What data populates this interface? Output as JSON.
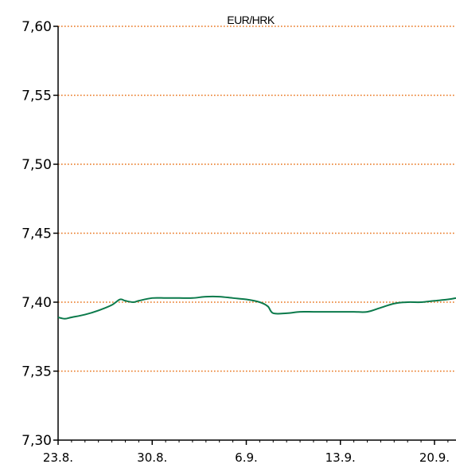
{
  "chart_data": {
    "type": "line",
    "title": "EUR/HRK",
    "xlabel": "",
    "ylabel": "",
    "ylim": [
      7.3,
      7.6
    ],
    "y_ticks": [
      "7,30",
      "7,35",
      "7,40",
      "7,45",
      "7,50",
      "7,55",
      "7,60"
    ],
    "x_tick_labels": [
      "23.8.",
      "30.8.",
      "6.9.",
      "13.9.",
      "20.9."
    ],
    "grid": "horizontal dotted",
    "grid_color": "#E8731A",
    "line_color": "#0B7A4B",
    "series": [
      {
        "x": [
          0,
          0.5,
          1,
          2,
          3,
          4,
          4.6,
          5,
          5.6,
          6,
          7,
          8,
          9,
          10,
          11,
          12,
          13,
          14,
          15,
          15.6,
          16,
          17,
          18,
          19,
          20,
          21,
          22,
          23,
          24,
          25,
          26,
          27,
          28,
          29,
          29.6
        ],
        "values": [
          7.389,
          7.388,
          7.389,
          7.391,
          7.394,
          7.398,
          7.402,
          7.401,
          7.4,
          7.401,
          7.403,
          7.403,
          7.403,
          7.403,
          7.404,
          7.404,
          7.403,
          7.402,
          7.4,
          7.397,
          7.392,
          7.392,
          7.393,
          7.393,
          7.393,
          7.393,
          7.393,
          7.393,
          7.396,
          7.399,
          7.4,
          7.4,
          7.401,
          7.402,
          7.403
        ]
      }
    ]
  }
}
